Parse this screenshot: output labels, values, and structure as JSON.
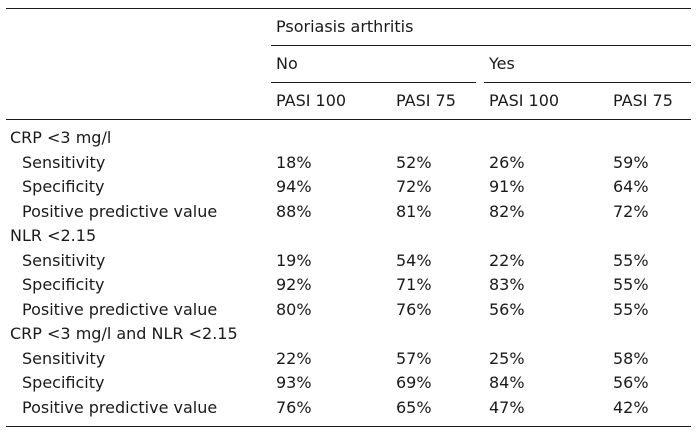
{
  "header": {
    "group": "Psoriasis arthritis",
    "subgroups": [
      "No",
      "Yes"
    ],
    "columns": [
      "PASI 100",
      "PASI 75",
      "PASI 100",
      "PASI 75"
    ]
  },
  "sections": [
    {
      "title": "CRP <3 mg/l",
      "rows": [
        {
          "label": "Sensitivity",
          "values": [
            "18%",
            "52%",
            "26%",
            "59%"
          ]
        },
        {
          "label": "Specificity",
          "values": [
            "94%",
            "72%",
            "91%",
            "64%"
          ]
        },
        {
          "label": "Positive predictive value",
          "values": [
            "88%",
            "81%",
            "82%",
            "72%"
          ]
        }
      ]
    },
    {
      "title": "NLR <2.15",
      "rows": [
        {
          "label": "Sensitivity",
          "values": [
            "19%",
            "54%",
            "22%",
            "55%"
          ]
        },
        {
          "label": "Specificity",
          "values": [
            "92%",
            "71%",
            "83%",
            "55%"
          ]
        },
        {
          "label": "Positive predictive value",
          "values": [
            "80%",
            "76%",
            "56%",
            "55%"
          ]
        }
      ]
    },
    {
      "title": "CRP <3 mg/l and NLR <2.15",
      "rows": [
        {
          "label": "Sensitivity",
          "values": [
            "22%",
            "57%",
            "25%",
            "58%"
          ]
        },
        {
          "label": "Specificity",
          "values": [
            "93%",
            "69%",
            "84%",
            "56%"
          ]
        },
        {
          "label": "Positive predictive value",
          "values": [
            "76%",
            "65%",
            "47%",
            "42%"
          ]
        }
      ]
    }
  ]
}
